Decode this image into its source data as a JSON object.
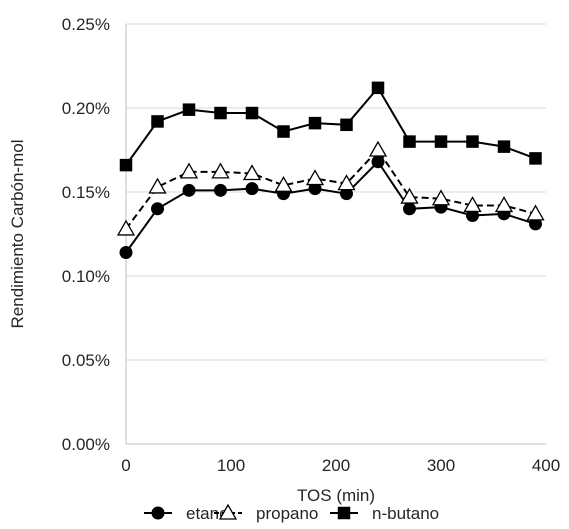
{
  "chart_data": {
    "type": "line",
    "title": "",
    "xlabel": "TOS (min)",
    "ylabel": "Rendimiento Carbón-mol",
    "xlim": [
      0,
      400
    ],
    "ylim": [
      0,
      0.25
    ],
    "x_ticks": [
      0,
      100,
      200,
      300,
      400
    ],
    "x_tick_labels": [
      "0",
      "100",
      "200",
      "300",
      "400"
    ],
    "y_ticks": [
      0,
      0.05,
      0.1,
      0.15,
      0.2,
      0.25
    ],
    "y_tick_labels": [
      "0.00%",
      "0.05%",
      "0.10%",
      "0.15%",
      "0.20%",
      "0.25%"
    ],
    "grid": "horizontal",
    "legend_position": "bottom",
    "x": [
      0,
      30,
      60,
      90,
      120,
      150,
      180,
      210,
      240,
      270,
      300,
      330,
      360,
      390
    ],
    "series": [
      {
        "name": "etano",
        "marker": "filled-circle",
        "line": "solid",
        "color": "#000000",
        "values": [
          0.114,
          0.14,
          0.151,
          0.151,
          0.152,
          0.149,
          0.152,
          0.149,
          0.168,
          0.14,
          0.141,
          0.136,
          0.137,
          0.131
        ]
      },
      {
        "name": "propano",
        "marker": "open-triangle",
        "line": "dashed",
        "color": "#000000",
        "values": [
          0.128,
          0.153,
          0.162,
          0.162,
          0.161,
          0.154,
          0.158,
          0.155,
          0.175,
          0.147,
          0.146,
          0.142,
          0.142,
          0.137
        ]
      },
      {
        "name": "n-butano",
        "marker": "filled-square",
        "line": "solid",
        "color": "#000000",
        "values": [
          0.166,
          0.192,
          0.199,
          0.197,
          0.197,
          0.186,
          0.191,
          0.19,
          0.212,
          0.18,
          0.18,
          0.18,
          0.177,
          0.17
        ]
      }
    ]
  }
}
